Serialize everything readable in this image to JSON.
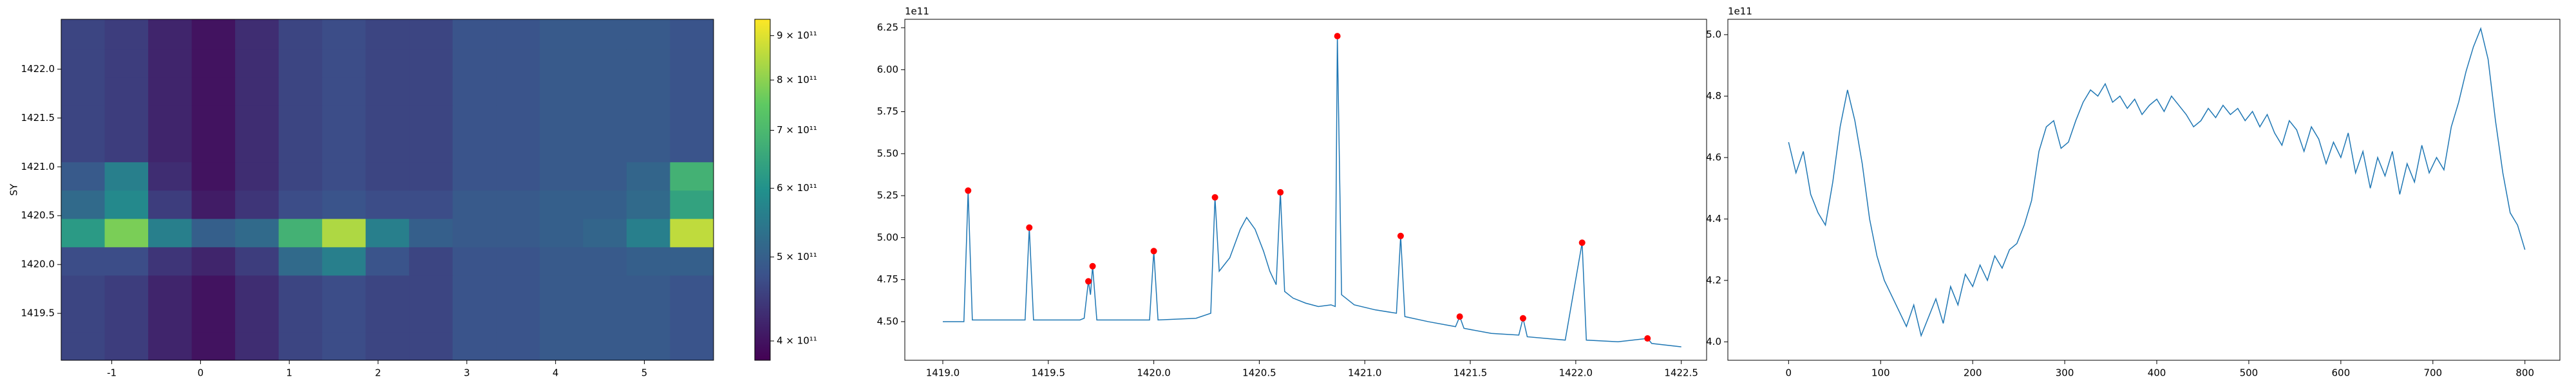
{
  "chart_data": [
    {
      "type": "heatmap",
      "ylabel": "SY",
      "xlim": [
        -1.57,
        5.78
      ],
      "ylim": [
        1419.02,
        1422.51
      ],
      "xticks": [
        -1,
        0,
        1,
        2,
        3,
        4,
        5
      ],
      "yticks": [
        {
          "value": 1419.5,
          "label": "1419.5"
        },
        {
          "value": 1420,
          "label": "1420.0"
        },
        {
          "value": 1420.5,
          "label": "1420.5"
        },
        {
          "value": 1421,
          "label": "1421.0"
        },
        {
          "value": 1421.5,
          "label": "1421.5"
        },
        {
          "value": 1422,
          "label": "1422.0"
        }
      ],
      "x_edges": [
        -1.57,
        -1.08,
        -0.59,
        -0.1,
        0.39,
        0.88,
        1.37,
        1.86,
        2.35,
        2.84,
        3.33,
        3.82,
        4.31,
        4.8,
        5.29,
        5.78
      ],
      "y_edges": [
        1419.02,
        1419.31,
        1419.6,
        1419.89,
        1420.18,
        1420.47,
        1420.76,
        1421.05,
        1421.34,
        1421.63,
        1421.92,
        1422.21,
        1422.51
      ],
      "values": [
        [
          460000000000.0,
          450000000000.0,
          420000000000.0,
          400000000000.0,
          430000000000.0,
          460000000000.0,
          470000000000.0,
          460000000000.0,
          460000000000.0,
          480000000000.0,
          480000000000.0,
          490000000000.0,
          490000000000.0,
          490000000000.0,
          480000000000.0
        ],
        [
          460000000000.0,
          450000000000.0,
          420000000000.0,
          400000000000.0,
          430000000000.0,
          460000000000.0,
          470000000000.0,
          460000000000.0,
          460000000000.0,
          480000000000.0,
          480000000000.0,
          490000000000.0,
          490000000000.0,
          490000000000.0,
          480000000000.0
        ],
        [
          460000000000.0,
          450000000000.0,
          420000000000.0,
          400000000000.0,
          430000000000.0,
          460000000000.0,
          470000000000.0,
          460000000000.0,
          460000000000.0,
          480000000000.0,
          480000000000.0,
          490000000000.0,
          490000000000.0,
          490000000000.0,
          480000000000.0
        ],
        [
          470000000000.0,
          470000000000.0,
          440000000000.0,
          420000000000.0,
          450000000000.0,
          520000000000.0,
          560000000000.0,
          480000000000.0,
          460000000000.0,
          480000000000.0,
          480000000000.0,
          490000000000.0,
          490000000000.0,
          500000000000.0,
          500000000000.0
        ],
        [
          620000000000.0,
          780000000000.0,
          560000000000.0,
          500000000000.0,
          520000000000.0,
          680000000000.0,
          840000000000.0,
          560000000000.0,
          500000000000.0,
          490000000000.0,
          490000000000.0,
          500000000000.0,
          510000000000.0,
          560000000000.0,
          860000000000.0
        ],
        [
          520000000000.0,
          580000000000.0,
          450000000000.0,
          410000000000.0,
          440000000000.0,
          470000000000.0,
          480000000000.0,
          470000000000.0,
          470000000000.0,
          490000000000.0,
          490000000000.0,
          500000000000.0,
          500000000000.0,
          520000000000.0,
          640000000000.0
        ],
        [
          490000000000.0,
          560000000000.0,
          430000000000.0,
          400000000000.0,
          430000000000.0,
          460000000000.0,
          470000000000.0,
          460000000000.0,
          460000000000.0,
          480000000000.0,
          480000000000.0,
          490000000000.0,
          490000000000.0,
          510000000000.0,
          680000000000.0
        ],
        [
          460000000000.0,
          450000000000.0,
          420000000000.0,
          400000000000.0,
          430000000000.0,
          460000000000.0,
          470000000000.0,
          460000000000.0,
          460000000000.0,
          480000000000.0,
          480000000000.0,
          490000000000.0,
          490000000000.0,
          490000000000.0,
          480000000000.0
        ],
        [
          460000000000.0,
          450000000000.0,
          420000000000.0,
          400000000000.0,
          430000000000.0,
          460000000000.0,
          470000000000.0,
          460000000000.0,
          460000000000.0,
          480000000000.0,
          480000000000.0,
          490000000000.0,
          490000000000.0,
          490000000000.0,
          480000000000.0
        ],
        [
          460000000000.0,
          450000000000.0,
          420000000000.0,
          400000000000.0,
          430000000000.0,
          460000000000.0,
          470000000000.0,
          460000000000.0,
          460000000000.0,
          480000000000.0,
          480000000000.0,
          490000000000.0,
          490000000000.0,
          490000000000.0,
          480000000000.0
        ],
        [
          460000000000.0,
          450000000000.0,
          420000000000.0,
          400000000000.0,
          430000000000.0,
          460000000000.0,
          470000000000.0,
          460000000000.0,
          460000000000.0,
          480000000000.0,
          480000000000.0,
          490000000000.0,
          490000000000.0,
          490000000000.0,
          480000000000.0
        ],
        [
          460000000000.0,
          450000000000.0,
          420000000000.0,
          400000000000.0,
          430000000000.0,
          460000000000.0,
          470000000000.0,
          460000000000.0,
          460000000000.0,
          480000000000.0,
          480000000000.0,
          490000000000.0,
          490000000000.0,
          490000000000.0,
          480000000000.0
        ]
      ],
      "colorbar": {
        "scale": "log",
        "colormap": "viridis",
        "lim": [
          380000000000.0,
          940000000000.0
        ],
        "ticks": [
          {
            "value": 400000000000.0,
            "label": "4 × 10¹¹"
          },
          {
            "value": 500000000000.0,
            "label": "5 × 10¹¹"
          },
          {
            "value": 600000000000.0,
            "label": "6 × 10¹¹"
          },
          {
            "value": 700000000000.0,
            "label": "7 × 10¹¹"
          },
          {
            "value": 800000000000.0,
            "label": "8 × 10¹¹"
          },
          {
            "value": 900000000000.0,
            "label": "9 × 10¹¹"
          }
        ]
      }
    },
    {
      "type": "line",
      "offset_text": "1e11",
      "xlim": [
        1418.82,
        1422.62
      ],
      "ylim": [
        4.27,
        6.3
      ],
      "xticks": [
        {
          "value": 1419,
          "label": "1419.0"
        },
        {
          "value": 1419.5,
          "label": "1419.5"
        },
        {
          "value": 1420,
          "label": "1420.0"
        },
        {
          "value": 1420.5,
          "label": "1420.5"
        },
        {
          "value": 1421,
          "label": "1421.0"
        },
        {
          "value": 1421.5,
          "label": "1421.5"
        },
        {
          "value": 1422,
          "label": "1422.0"
        },
        {
          "value": 1422.5,
          "label": "1422.5"
        }
      ],
      "yticks": [
        {
          "value": 4.5,
          "label": "4.50"
        },
        {
          "value": 4.75,
          "label": "4.75"
        },
        {
          "value": 5,
          "label": "5.00"
        },
        {
          "value": 5.25,
          "label": "5.25"
        },
        {
          "value": 5.5,
          "label": "5.50"
        },
        {
          "value": 5.75,
          "label": "5.75"
        },
        {
          "value": 6,
          "label": "6.00"
        },
        {
          "value": 6.25,
          "label": "6.25"
        }
      ],
      "series": [
        {
          "style": "line",
          "color": "#1f77b4",
          "x": [
            1419.0,
            1419.1,
            1419.12,
            1419.14,
            1419.39,
            1419.41,
            1419.43,
            1419.65,
            1419.67,
            1419.69,
            1419.7,
            1419.71,
            1419.73,
            1419.98,
            1420.0,
            1420.02,
            1420.2,
            1420.27,
            1420.29,
            1420.31,
            1420.36,
            1420.41,
            1420.44,
            1420.48,
            1420.52,
            1420.55,
            1420.58,
            1420.6,
            1420.62,
            1420.66,
            1420.72,
            1420.78,
            1420.84,
            1420.86,
            1420.87,
            1420.89,
            1420.95,
            1421.05,
            1421.15,
            1421.17,
            1421.19,
            1421.3,
            1421.43,
            1421.45,
            1421.47,
            1421.6,
            1421.73,
            1421.75,
            1421.77,
            1421.95,
            1422.03,
            1422.05,
            1422.2,
            1422.34,
            1422.36,
            1422.5
          ],
          "values": [
            4.5,
            4.5,
            5.28,
            4.51,
            4.51,
            5.06,
            4.51,
            4.51,
            4.52,
            4.74,
            4.66,
            4.83,
            4.51,
            4.51,
            4.92,
            4.51,
            4.52,
            4.55,
            5.24,
            4.8,
            4.88,
            5.05,
            5.12,
            5.05,
            4.92,
            4.8,
            4.72,
            5.27,
            4.68,
            4.64,
            4.61,
            4.59,
            4.6,
            4.59,
            6.2,
            4.66,
            4.6,
            4.57,
            4.55,
            5.01,
            4.53,
            4.5,
            4.47,
            4.53,
            4.46,
            4.43,
            4.42,
            4.52,
            4.41,
            4.39,
            4.97,
            4.39,
            4.38,
            4.4,
            4.37,
            4.35
          ]
        },
        {
          "style": "scatter",
          "color": "#ff0000",
          "x": [
            1419.12,
            1419.41,
            1419.69,
            1419.71,
            1420.0,
            1420.29,
            1420.6,
            1420.87,
            1421.17,
            1421.45,
            1421.75,
            1422.03,
            1422.34
          ],
          "values": [
            5.28,
            5.06,
            4.74,
            4.83,
            4.92,
            5.24,
            5.27,
            6.2,
            5.01,
            4.53,
            4.52,
            4.97,
            4.4
          ]
        }
      ]
    },
    {
      "type": "line",
      "offset_text": "1e11",
      "xlim": [
        -66,
        838
      ],
      "ylim": [
        3.94,
        5.05
      ],
      "xticks": [
        0,
        100,
        200,
        300,
        400,
        500,
        600,
        700,
        800
      ],
      "yticks": [
        {
          "value": 4,
          "label": "4.0"
        },
        {
          "value": 4.2,
          "label": "4.2"
        },
        {
          "value": 4.4,
          "label": "4.4"
        },
        {
          "value": 4.6,
          "label": "4.6"
        },
        {
          "value": 4.8,
          "label": "4.8"
        },
        {
          "value": 5,
          "label": "5.0"
        }
      ],
      "series": [
        {
          "style": "line",
          "color": "#1f77b4",
          "x": [
            0,
            8,
            16,
            24,
            32,
            40,
            48,
            56,
            64,
            72,
            80,
            88,
            96,
            104,
            112,
            120,
            128,
            136,
            144,
            152,
            160,
            168,
            176,
            184,
            192,
            200,
            208,
            216,
            224,
            232,
            240,
            248,
            256,
            264,
            272,
            280,
            288,
            296,
            304,
            312,
            320,
            328,
            336,
            344,
            352,
            360,
            368,
            376,
            384,
            392,
            400,
            408,
            416,
            424,
            432,
            440,
            448,
            456,
            464,
            472,
            480,
            488,
            496,
            504,
            512,
            520,
            528,
            536,
            544,
            552,
            560,
            568,
            576,
            584,
            592,
            600,
            608,
            616,
            624,
            632,
            640,
            648,
            656,
            664,
            672,
            680,
            688,
            696,
            704,
            712,
            720,
            728,
            736,
            744,
            752,
            760,
            768,
            776,
            784,
            792,
            800
          ],
          "values": [
            4.65,
            4.55,
            4.62,
            4.48,
            4.42,
            4.38,
            4.52,
            4.7,
            4.82,
            4.72,
            4.58,
            4.4,
            4.28,
            4.2,
            4.15,
            4.1,
            4.05,
            4.12,
            4.02,
            4.08,
            4.14,
            4.06,
            4.18,
            4.12,
            4.22,
            4.18,
            4.25,
            4.2,
            4.28,
            4.24,
            4.3,
            4.32,
            4.38,
            4.46,
            4.62,
            4.7,
            4.72,
            4.63,
            4.65,
            4.72,
            4.78,
            4.82,
            4.8,
            4.84,
            4.78,
            4.8,
            4.76,
            4.79,
            4.74,
            4.77,
            4.79,
            4.75,
            4.8,
            4.77,
            4.74,
            4.7,
            4.72,
            4.76,
            4.73,
            4.77,
            4.74,
            4.76,
            4.72,
            4.75,
            4.7,
            4.74,
            4.68,
            4.64,
            4.72,
            4.69,
            4.62,
            4.7,
            4.66,
            4.58,
            4.65,
            4.6,
            4.68,
            4.55,
            4.62,
            4.5,
            4.6,
            4.54,
            4.62,
            4.48,
            4.58,
            4.52,
            4.64,
            4.55,
            4.6,
            4.56,
            4.7,
            4.78,
            4.88,
            4.96,
            5.02,
            4.92,
            4.72,
            4.55,
            4.42,
            4.38,
            4.3
          ]
        }
      ]
    }
  ]
}
